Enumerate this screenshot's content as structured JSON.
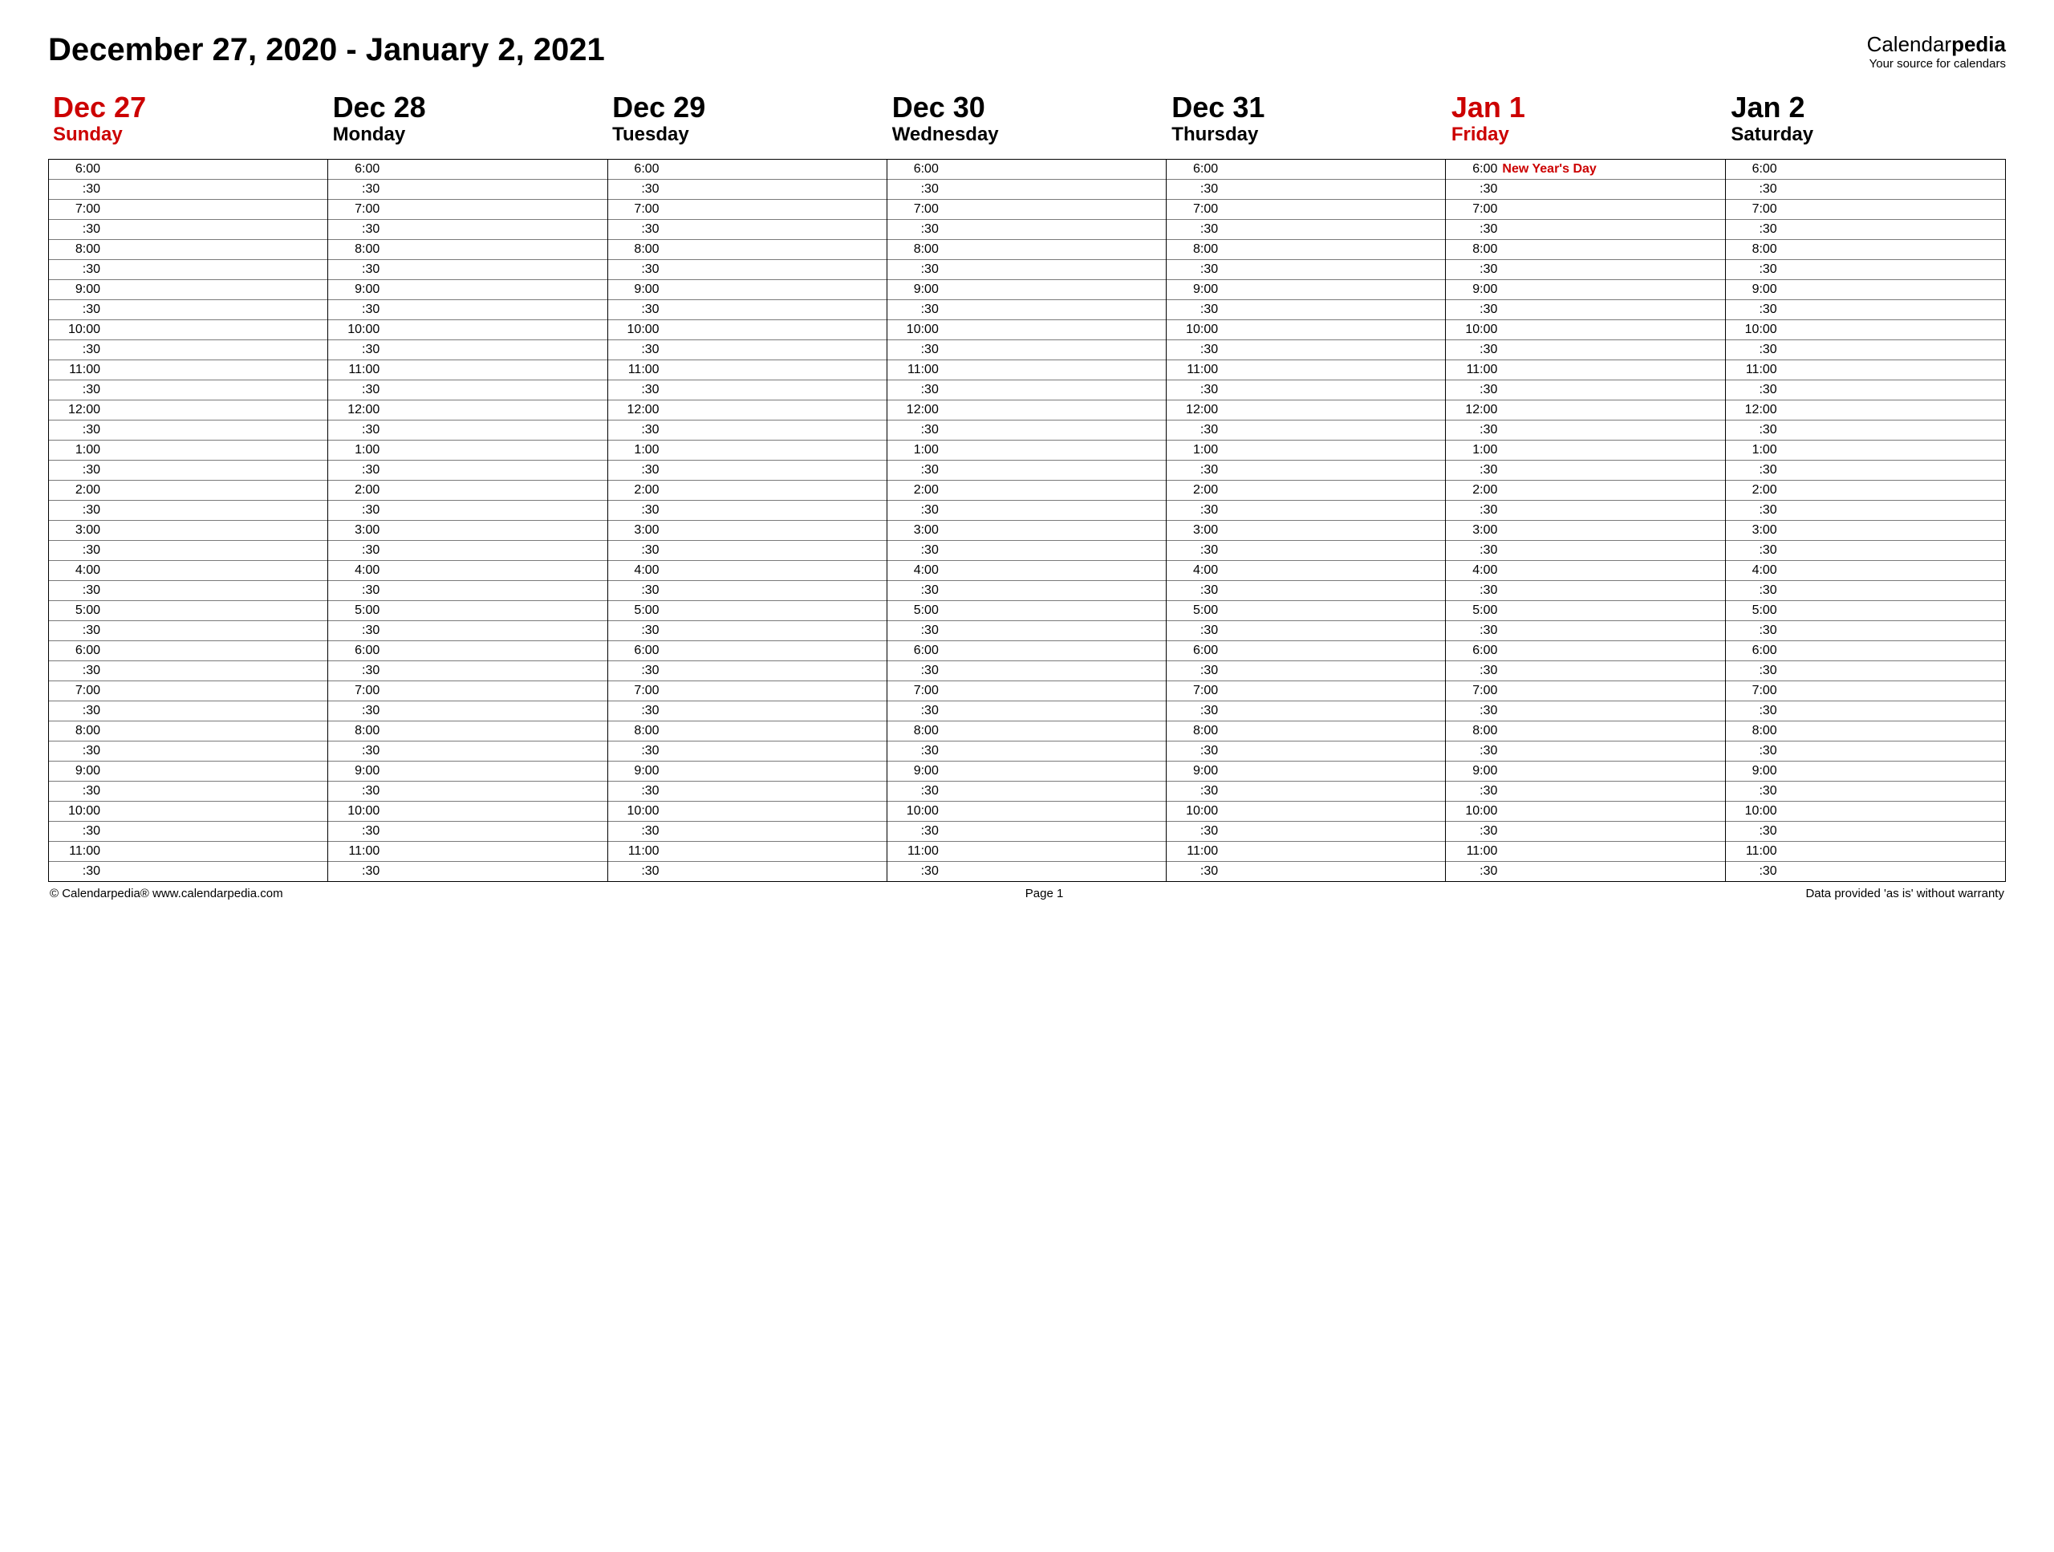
{
  "header": {
    "week_title": "December 27, 2020 - January 2, 2021",
    "brand_prefix": "Calendar",
    "brand_suffix": "pedia",
    "brand_tagline": "Your source for calendars"
  },
  "colors": {
    "highlight": "#cc0000",
    "text": "#000000",
    "border_outer": "#000000",
    "border_inner": "#7a7a7a",
    "background": "#ffffff"
  },
  "days": [
    {
      "date": "Dec 27",
      "name": "Sunday",
      "highlight": true,
      "events": {}
    },
    {
      "date": "Dec 28",
      "name": "Monday",
      "highlight": false,
      "events": {}
    },
    {
      "date": "Dec 29",
      "name": "Tuesday",
      "highlight": false,
      "events": {}
    },
    {
      "date": "Dec 30",
      "name": "Wednesday",
      "highlight": false,
      "events": {}
    },
    {
      "date": "Dec 31",
      "name": "Thursday",
      "highlight": false,
      "events": {}
    },
    {
      "date": "Jan 1",
      "name": "Friday",
      "highlight": true,
      "events": {
        "0": "New Year's Day"
      }
    },
    {
      "date": "Jan 2",
      "name": "Saturday",
      "highlight": false,
      "events": {}
    }
  ],
  "time_slots": [
    "6:00",
    ":30",
    "7:00",
    ":30",
    "8:00",
    ":30",
    "9:00",
    ":30",
    "10:00",
    ":30",
    "11:00",
    ":30",
    "12:00",
    ":30",
    "1:00",
    ":30",
    "2:00",
    ":30",
    "3:00",
    ":30",
    "4:00",
    ":30",
    "5:00",
    ":30",
    "6:00",
    ":30",
    "7:00",
    ":30",
    "8:00",
    ":30",
    "9:00",
    ":30",
    "10:00",
    ":30",
    "11:00",
    ":30"
  ],
  "footer": {
    "left": "© Calendarpedia®   www.calendarpedia.com",
    "center": "Page 1",
    "right": "Data provided 'as is' without warranty"
  }
}
